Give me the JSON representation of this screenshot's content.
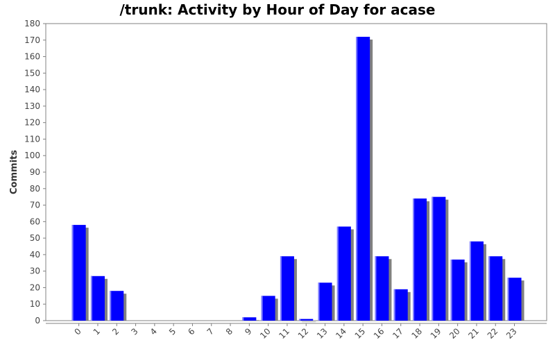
{
  "chart_data": {
    "type": "bar",
    "title": "/trunk: Activity by Hour of Day for acase",
    "xlabel": "",
    "ylabel": "Commits",
    "categories": [
      "0",
      "1",
      "2",
      "3",
      "4",
      "5",
      "6",
      "7",
      "8",
      "9",
      "10",
      "11",
      "12",
      "13",
      "14",
      "15",
      "16",
      "17",
      "18",
      "19",
      "20",
      "21",
      "22",
      "23"
    ],
    "values": [
      58,
      27,
      18,
      0,
      0,
      0,
      0,
      0,
      0,
      2,
      15,
      39,
      1,
      23,
      57,
      172,
      39,
      19,
      74,
      75,
      37,
      48,
      39,
      26
    ],
    "ylim": [
      0,
      180
    ],
    "yticks": [
      0,
      10,
      20,
      30,
      40,
      50,
      60,
      70,
      80,
      90,
      100,
      110,
      120,
      130,
      140,
      150,
      160,
      170,
      180
    ],
    "grid": false,
    "bar_color": "#0000ff",
    "shadow_color": "#808080"
  }
}
